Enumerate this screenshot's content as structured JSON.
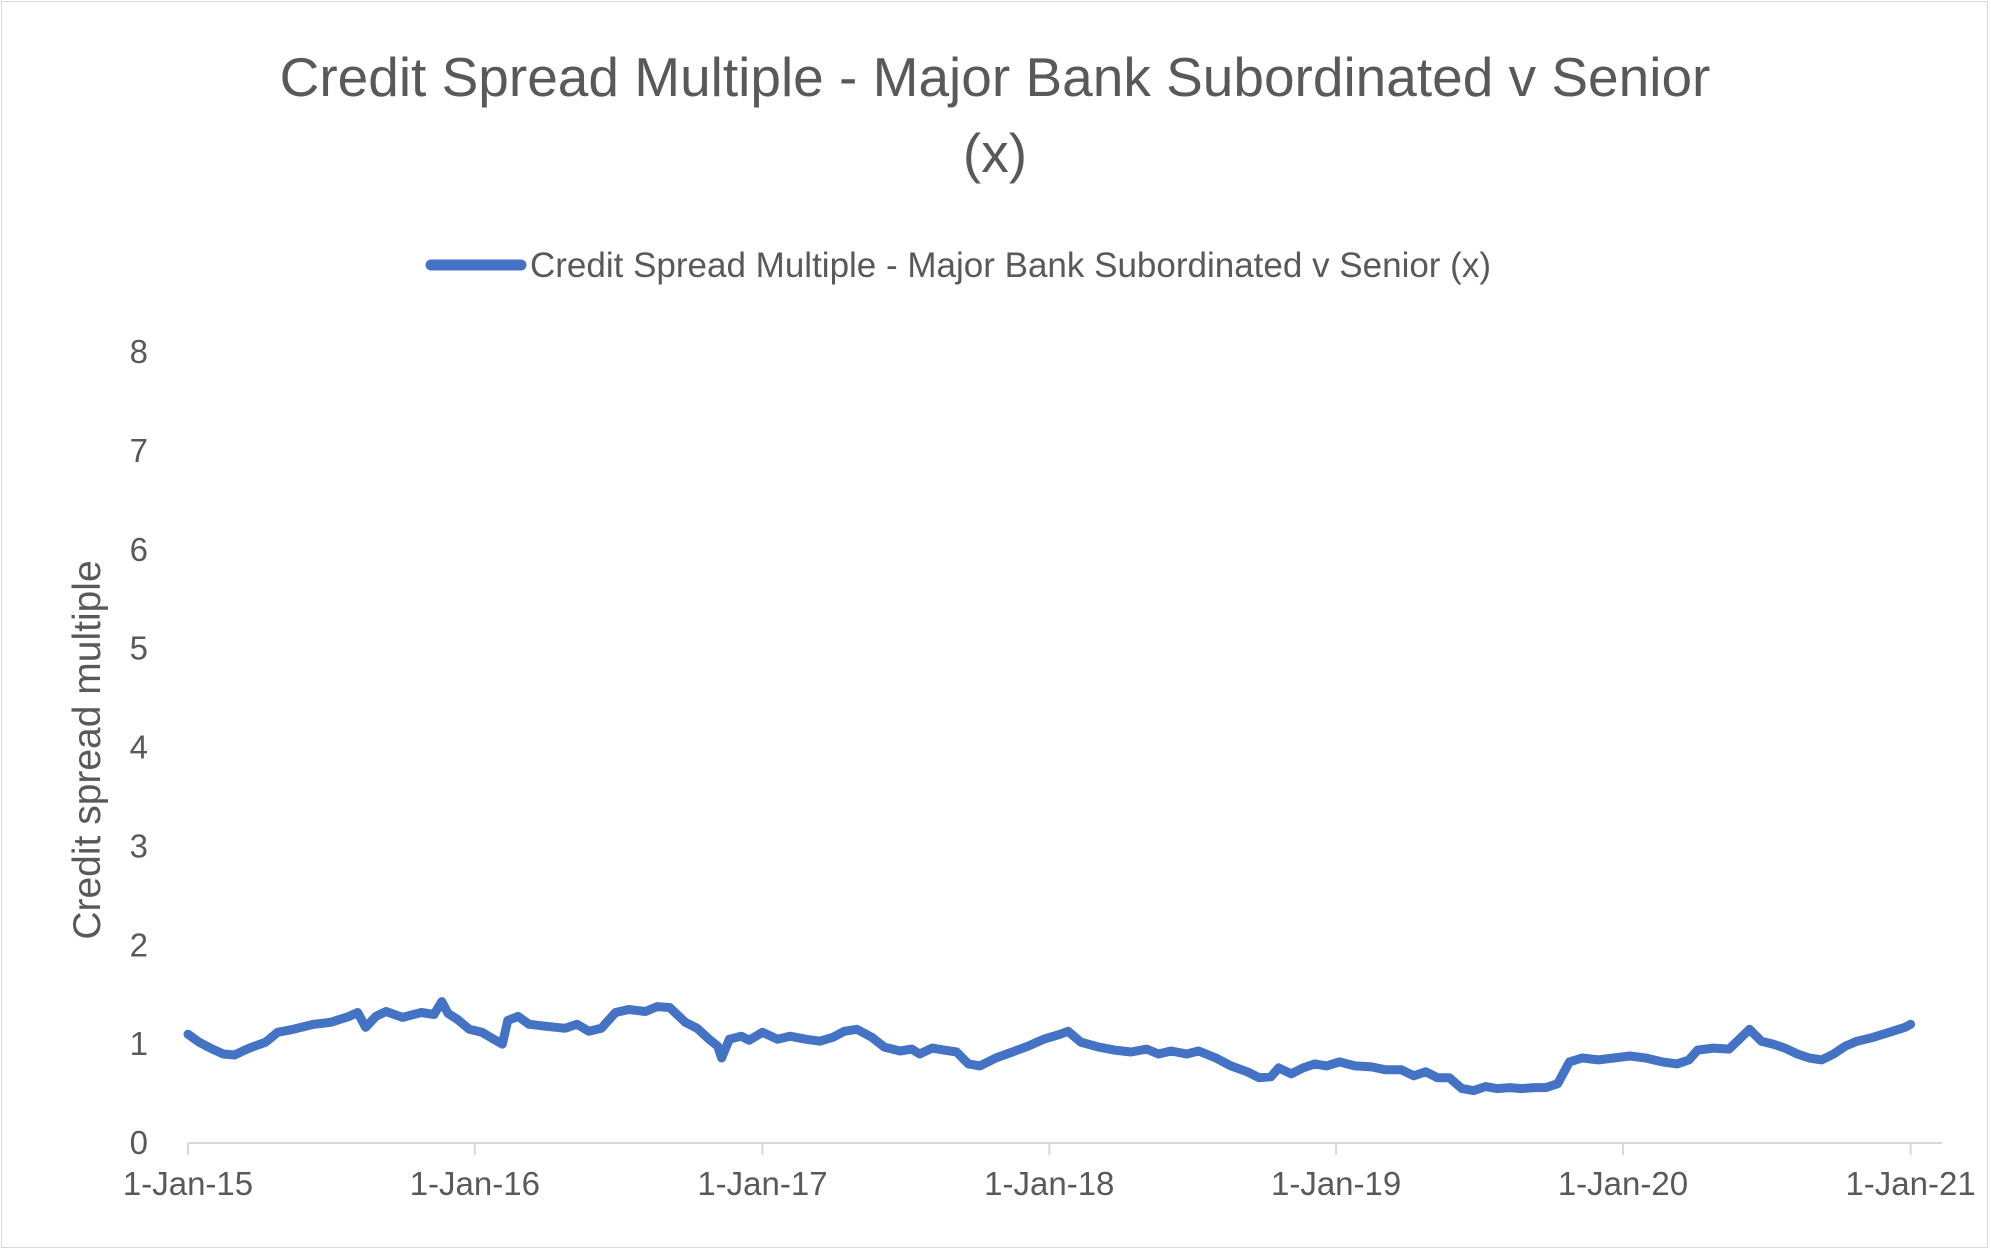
{
  "chart_data": {
    "type": "line",
    "title": "Credit Spread Multiple - Major Bank Subordinated v Senior (x)",
    "title_lines": [
      "Credit Spread Multiple - Major Bank Subordinated v Senior",
      "(x)"
    ],
    "xlabel": "",
    "ylabel": "Credit spread multiple",
    "xlim": [
      "2015-01-01",
      "2021-02-10"
    ],
    "ylim": [
      0,
      8
    ],
    "yticks": [
      0,
      1,
      2,
      3,
      4,
      5,
      6,
      7,
      8
    ],
    "xticks": [
      {
        "date": "2015-01-01",
        "label": "1-Jan-15"
      },
      {
        "date": "2016-01-01",
        "label": "1-Jan-16"
      },
      {
        "date": "2017-01-01",
        "label": "1-Jan-17"
      },
      {
        "date": "2018-01-01",
        "label": "1-Jan-18"
      },
      {
        "date": "2019-01-01",
        "label": "1-Jan-19"
      },
      {
        "date": "2020-01-01",
        "label": "1-Jan-20"
      },
      {
        "date": "2021-01-01",
        "label": "1-Jan-21"
      }
    ],
    "grid": false,
    "legend": "top",
    "series": [
      {
        "name": "Credit Spread Multiple - Major Bank Subordinated v Senior (x)",
        "color": "#4472C4",
        "points": [
          [
            "2015-01-01",
            1.1
          ],
          [
            "2015-01-15",
            1.02
          ],
          [
            "2015-02-01",
            0.95
          ],
          [
            "2015-02-15",
            0.9
          ],
          [
            "2015-03-01",
            0.89
          ],
          [
            "2015-03-20",
            0.96
          ],
          [
            "2015-04-10",
            1.02
          ],
          [
            "2015-04-25",
            1.12
          ],
          [
            "2015-05-15",
            1.15
          ],
          [
            "2015-06-10",
            1.2
          ],
          [
            "2015-07-01",
            1.22
          ],
          [
            "2015-07-25",
            1.28
          ],
          [
            "2015-08-05",
            1.32
          ],
          [
            "2015-08-15",
            1.17
          ],
          [
            "2015-08-28",
            1.28
          ],
          [
            "2015-09-10",
            1.33
          ],
          [
            "2015-10-01",
            1.27
          ],
          [
            "2015-10-25",
            1.32
          ],
          [
            "2015-11-10",
            1.3
          ],
          [
            "2015-11-20",
            1.43
          ],
          [
            "2015-11-28",
            1.31
          ],
          [
            "2015-12-10",
            1.25
          ],
          [
            "2015-12-25",
            1.15
          ],
          [
            "2016-01-10",
            1.12
          ],
          [
            "2016-01-25",
            1.05
          ],
          [
            "2016-02-05",
            1.0
          ],
          [
            "2016-02-12",
            1.24
          ],
          [
            "2016-02-25",
            1.28
          ],
          [
            "2016-03-10",
            1.2
          ],
          [
            "2016-04-01",
            1.18
          ],
          [
            "2016-04-25",
            1.16
          ],
          [
            "2016-05-10",
            1.2
          ],
          [
            "2016-05-25",
            1.13
          ],
          [
            "2016-06-10",
            1.16
          ],
          [
            "2016-06-28",
            1.32
          ],
          [
            "2016-07-15",
            1.35
          ],
          [
            "2016-08-05",
            1.33
          ],
          [
            "2016-08-20",
            1.38
          ],
          [
            "2016-09-05",
            1.37
          ],
          [
            "2016-09-25",
            1.22
          ],
          [
            "2016-10-10",
            1.16
          ],
          [
            "2016-10-25",
            1.05
          ],
          [
            "2016-11-05",
            0.98
          ],
          [
            "2016-11-10",
            0.86
          ],
          [
            "2016-11-20",
            1.05
          ],
          [
            "2016-12-05",
            1.08
          ],
          [
            "2016-12-15",
            1.04
          ],
          [
            "2017-01-01",
            1.12
          ],
          [
            "2017-01-20",
            1.05
          ],
          [
            "2017-02-05",
            1.08
          ],
          [
            "2017-02-25",
            1.05
          ],
          [
            "2017-03-15",
            1.03
          ],
          [
            "2017-04-01",
            1.07
          ],
          [
            "2017-04-15",
            1.13
          ],
          [
            "2017-05-01",
            1.15
          ],
          [
            "2017-05-20",
            1.07
          ],
          [
            "2017-06-05",
            0.97
          ],
          [
            "2017-06-25",
            0.93
          ],
          [
            "2017-07-10",
            0.95
          ],
          [
            "2017-07-20",
            0.9
          ],
          [
            "2017-08-05",
            0.96
          ],
          [
            "2017-08-20",
            0.94
          ],
          [
            "2017-09-05",
            0.92
          ],
          [
            "2017-09-20",
            0.8
          ],
          [
            "2017-10-05",
            0.78
          ],
          [
            "2017-10-25",
            0.86
          ],
          [
            "2017-11-15",
            0.92
          ],
          [
            "2017-12-05",
            0.98
          ],
          [
            "2017-12-25",
            1.05
          ],
          [
            "2018-01-15",
            1.1
          ],
          [
            "2018-01-25",
            1.13
          ],
          [
            "2018-02-10",
            1.02
          ],
          [
            "2018-03-05",
            0.97
          ],
          [
            "2018-03-25",
            0.94
          ],
          [
            "2018-04-15",
            0.92
          ],
          [
            "2018-05-05",
            0.95
          ],
          [
            "2018-05-20",
            0.9
          ],
          [
            "2018-06-05",
            0.93
          ],
          [
            "2018-06-25",
            0.9
          ],
          [
            "2018-07-10",
            0.93
          ],
          [
            "2018-08-01",
            0.86
          ],
          [
            "2018-08-20",
            0.78
          ],
          [
            "2018-09-10",
            0.72
          ],
          [
            "2018-09-25",
            0.66
          ],
          [
            "2018-10-10",
            0.67
          ],
          [
            "2018-10-20",
            0.76
          ],
          [
            "2018-11-05",
            0.7
          ],
          [
            "2018-11-20",
            0.76
          ],
          [
            "2018-12-05",
            0.8
          ],
          [
            "2018-12-20",
            0.78
          ],
          [
            "2019-01-05",
            0.82
          ],
          [
            "2019-01-25",
            0.78
          ],
          [
            "2019-02-15",
            0.77
          ],
          [
            "2019-03-05",
            0.74
          ],
          [
            "2019-03-25",
            0.74
          ],
          [
            "2019-04-10",
            0.68
          ],
          [
            "2019-04-25",
            0.72
          ],
          [
            "2019-05-10",
            0.66
          ],
          [
            "2019-05-25",
            0.66
          ],
          [
            "2019-06-10",
            0.55
          ],
          [
            "2019-06-25",
            0.53
          ],
          [
            "2019-07-10",
            0.57
          ],
          [
            "2019-07-25",
            0.55
          ],
          [
            "2019-08-10",
            0.56
          ],
          [
            "2019-08-25",
            0.55
          ],
          [
            "2019-09-10",
            0.56
          ],
          [
            "2019-09-25",
            0.56
          ],
          [
            "2019-10-10",
            0.6
          ],
          [
            "2019-10-25",
            0.82
          ],
          [
            "2019-11-10",
            0.86
          ],
          [
            "2019-12-01",
            0.84
          ],
          [
            "2019-12-20",
            0.86
          ],
          [
            "2020-01-10",
            0.88
          ],
          [
            "2020-01-30",
            0.86
          ],
          [
            "2020-02-20",
            0.82
          ],
          [
            "2020-03-10",
            0.8
          ],
          [
            "2020-03-25",
            0.84
          ],
          [
            "2020-04-05",
            0.94
          ],
          [
            "2020-04-25",
            0.96
          ],
          [
            "2020-05-15",
            0.95
          ],
          [
            "2020-05-28",
            1.05
          ],
          [
            "2020-06-10",
            1.15
          ],
          [
            "2020-06-25",
            1.03
          ],
          [
            "2020-07-10",
            1.0
          ],
          [
            "2020-07-25",
            0.96
          ],
          [
            "2020-08-10",
            0.9
          ],
          [
            "2020-08-25",
            0.86
          ],
          [
            "2020-09-10",
            0.84
          ],
          [
            "2020-09-25",
            0.9
          ],
          [
            "2020-10-10",
            0.98
          ],
          [
            "2020-10-25",
            1.03
          ],
          [
            "2020-11-15",
            1.07
          ],
          [
            "2020-12-05",
            1.12
          ],
          [
            "2020-12-25",
            1.17
          ],
          [
            "2021-01-01",
            1.2
          ]
        ]
      }
    ]
  },
  "legend": {
    "label": "Credit Spread Multiple - Major Bank Subordinated v Senior (x)"
  }
}
